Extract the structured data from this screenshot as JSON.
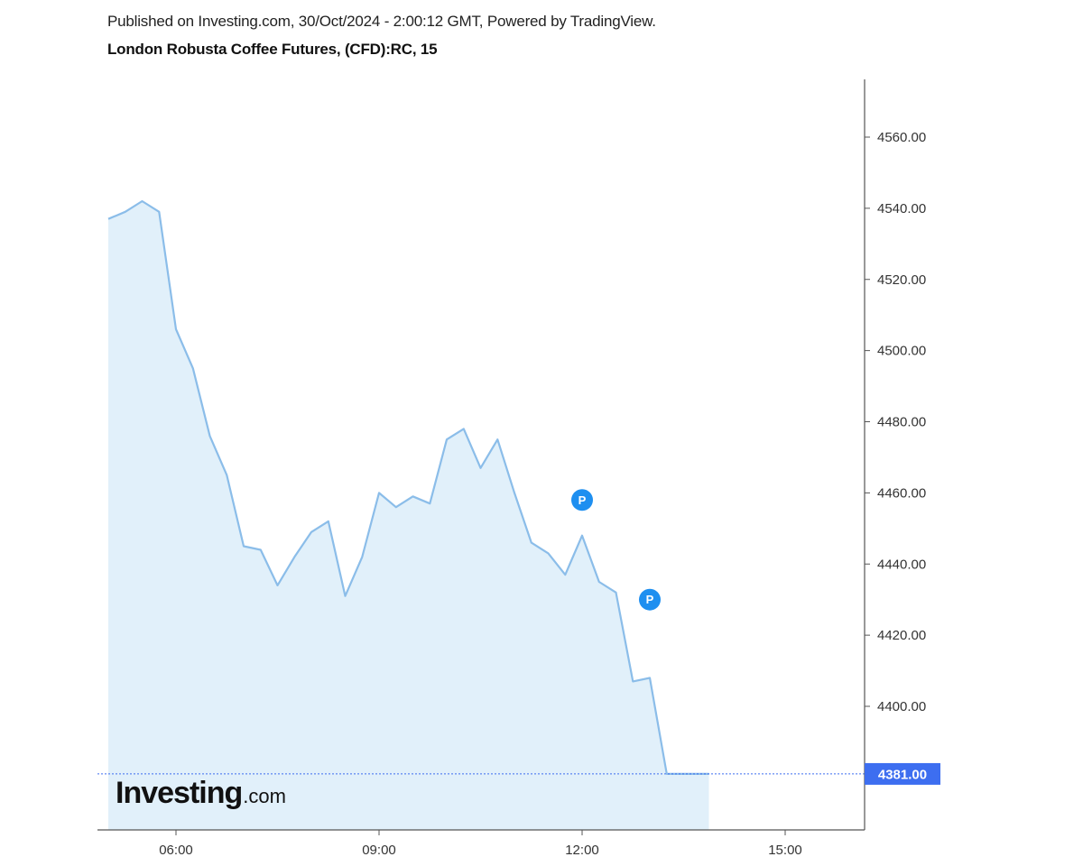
{
  "header": {
    "published": "Published on Investing.com, 30/Oct/2024 - 2:00:12 GMT, Powered by TradingView.",
    "title": "London Robusta Coffee Futures, (CFD):RC, 15"
  },
  "logo": {
    "brand": "Investing",
    "suffix": ".com"
  },
  "colors": {
    "line": "#8bbde9",
    "fill": "#e1f0fa",
    "last_price_bg": "#3d6ef0",
    "marker": "#1e8ff0"
  },
  "chart_data": {
    "type": "area",
    "title": "London Robusta Coffee Futures, (CFD):RC, 15",
    "xlabel": "",
    "ylabel": "",
    "x_ticks": [
      "06:00",
      "09:00",
      "12:00",
      "15:00"
    ],
    "x_range": [
      "04:45",
      "16:15"
    ],
    "y_ticks": [
      4400,
      4420,
      4440,
      4460,
      4480,
      4500,
      4520,
      4540,
      4560
    ],
    "y_tick_labels": [
      "4400.00",
      "4420.00",
      "4440.00",
      "4460.00",
      "4480.00",
      "4500.00",
      "4520.00",
      "4540.00",
      "4560.00"
    ],
    "ylim": [
      4365,
      4577
    ],
    "grid": false,
    "last_price": 4381,
    "last_price_label": "4381.00",
    "series": [
      {
        "x": [
          "05:00",
          "05:15",
          "05:30",
          "05:45",
          "06:00",
          "06:15",
          "06:30",
          "06:45",
          "07:00",
          "07:15",
          "07:30",
          "07:45",
          "08:00",
          "08:15",
          "08:30",
          "08:45",
          "09:00",
          "09:15",
          "09:30",
          "09:45",
          "10:00",
          "10:15",
          "10:30",
          "10:45",
          "11:00",
          "11:15",
          "11:30",
          "11:45",
          "12:00",
          "12:15",
          "12:30",
          "12:45",
          "13:00",
          "13:15",
          "13:30"
        ],
        "values": [
          4537,
          4539,
          4542,
          4539,
          4506,
          4495,
          4476,
          4465,
          4445,
          4444,
          4434,
          4442,
          4449,
          4452,
          4431,
          4442,
          4460,
          4456,
          4459,
          4457,
          4475,
          4478,
          4467,
          4475,
          4460,
          4446,
          4443,
          4437,
          4448,
          4435,
          4432,
          4407,
          4408,
          4381,
          4381
        ]
      }
    ],
    "markers": [
      {
        "label": "P",
        "x": "12:00",
        "y": 4458
      },
      {
        "label": "P",
        "x": "13:00",
        "y": 4430
      }
    ]
  }
}
